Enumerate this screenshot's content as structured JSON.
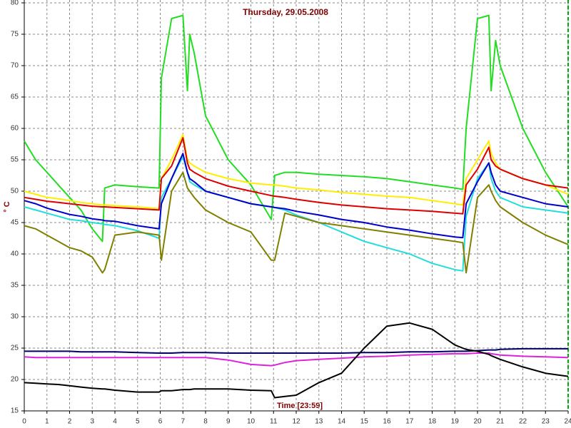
{
  "chart_data": {
    "type": "line",
    "title": "Thursday, 29.05.2008",
    "y_label": "° C",
    "x_label": "Time [23:59]",
    "xlim": [
      0,
      24
    ],
    "ylim": [
      15,
      80
    ],
    "xticks": [
      0,
      1,
      2,
      3,
      4,
      5,
      6,
      7,
      8,
      9,
      10,
      11,
      12,
      13,
      14,
      15,
      16,
      17,
      18,
      19,
      20,
      21,
      22,
      23,
      24
    ],
    "yticks": [
      15,
      20,
      25,
      30,
      35,
      40,
      45,
      50,
      55,
      60,
      65,
      70,
      75,
      80
    ],
    "grid": true,
    "x": [
      0,
      0.5,
      1,
      1.5,
      2,
      2.5,
      3,
      3.45,
      3.55,
      4,
      5,
      5.95,
      6.05,
      6.5,
      7,
      7.2,
      7.3,
      7.5,
      8,
      9,
      10,
      10.9,
      11.05,
      11.5,
      12,
      13,
      14,
      15,
      16,
      17,
      18,
      19,
      19.35,
      19.5,
      20,
      20.5,
      20.6,
      20.8,
      21,
      22,
      23,
      24
    ],
    "series": [
      {
        "color": "#22dd22",
        "values": [
          58,
          55,
          53,
          51,
          49,
          47,
          44,
          42,
          50.5,
          51,
          50.7,
          50.5,
          68,
          77.5,
          78,
          66,
          75,
          72,
          62,
          55,
          51,
          45.5,
          52.5,
          53,
          53,
          52.7,
          52.5,
          52.3,
          52,
          51.5,
          51,
          50.5,
          50.3,
          60,
          77.5,
          78,
          66,
          74,
          70,
          60,
          53,
          47.5
        ]
      },
      {
        "color": "#ffee00",
        "values": [
          50,
          49.5,
          49,
          48.8,
          48.5,
          48.2,
          48,
          47.8,
          47.8,
          47.7,
          47.5,
          47.2,
          52,
          55,
          59,
          55,
          54.5,
          54,
          53,
          52,
          51.3,
          51,
          51,
          50.8,
          50.5,
          50.2,
          49.8,
          49.5,
          49.2,
          49,
          48.5,
          48,
          47.8,
          52,
          55,
          58,
          56,
          54.5,
          53.5,
          52,
          51,
          49.5
        ]
      },
      {
        "color": "#dd0000",
        "values": [
          49,
          48.7,
          48.4,
          48.2,
          48,
          47.8,
          47.6,
          47.5,
          47.5,
          47.4,
          47.2,
          47,
          52,
          54,
          58.5,
          54.5,
          53.5,
          53,
          52,
          50.8,
          50,
          49.3,
          49.2,
          49,
          48.7,
          48.2,
          47.8,
          47.5,
          47.2,
          47,
          46.8,
          46.5,
          46.4,
          51,
          53.5,
          57,
          55,
          54,
          53.5,
          52,
          51,
          50.5
        ]
      },
      {
        "color": "#22dddd",
        "values": [
          47.5,
          47,
          46.5,
          46,
          45.5,
          45.3,
          45,
          44.8,
          44.7,
          44.5,
          43.7,
          42.5,
          49,
          52,
          55.5,
          53,
          51.5,
          51,
          50,
          49,
          48,
          47.5,
          47.4,
          47,
          46.2,
          45,
          43.5,
          42,
          41,
          40,
          38.5,
          37.5,
          37.3,
          46,
          52,
          54.5,
          52,
          50,
          49,
          47.5,
          47,
          46.5
        ]
      },
      {
        "color": "#0000cc",
        "values": [
          48.5,
          48,
          47.3,
          46.8,
          46.3,
          46,
          45.6,
          45.4,
          45.3,
          45.2,
          44.5,
          44,
          48,
          52,
          56,
          53,
          52,
          51.5,
          50,
          49,
          48,
          47.5,
          47.4,
          47.2,
          46.8,
          46.2,
          45.5,
          45,
          44.3,
          43.8,
          43.2,
          42.7,
          42.6,
          48,
          51.5,
          54.5,
          53,
          51,
          50,
          49,
          48,
          47.5
        ]
      },
      {
        "color": "#808000",
        "values": [
          44.5,
          44,
          43,
          42,
          41,
          40.5,
          39.5,
          37,
          37.5,
          43,
          43.5,
          43,
          39,
          50,
          53,
          50.5,
          50,
          49,
          47,
          45,
          43.5,
          39,
          39,
          46.5,
          46,
          45,
          44.5,
          44,
          43.5,
          43,
          42.5,
          42,
          41.8,
          37,
          49,
          51,
          50,
          48.5,
          47.5,
          45,
          43,
          41.5
        ]
      },
      {
        "color": "#000066",
        "values": [
          24.5,
          24.5,
          24.5,
          24.5,
          24.5,
          24.4,
          24.4,
          24.4,
          24.4,
          24.4,
          24.3,
          24.2,
          24.2,
          24.2,
          24.3,
          24.3,
          24.3,
          24.3,
          24.3,
          24.2,
          24.2,
          24.2,
          24.2,
          24.2,
          24.2,
          24.2,
          24.2,
          24.3,
          24.3,
          24.4,
          24.4,
          24.5,
          24.5,
          24.5,
          24.6,
          24.7,
          24.7,
          24.7,
          24.8,
          24.9,
          24.9,
          24.9
        ]
      },
      {
        "color": "#dd22dd",
        "values": [
          23.6,
          23.5,
          23.5,
          23.5,
          23.5,
          23.5,
          23.5,
          23.5,
          23.5,
          23.5,
          23.5,
          23.5,
          23.5,
          23.5,
          23.5,
          23.5,
          23.5,
          23.5,
          23.5,
          23.1,
          22.4,
          22.2,
          22.3,
          22.7,
          23,
          23.2,
          23.4,
          23.6,
          23.7,
          23.9,
          24,
          24.1,
          24.1,
          24.1,
          24.2,
          24.2,
          24.1,
          24,
          23.9,
          23.7,
          23.6,
          23.5
        ]
      },
      {
        "color": "#000000",
        "values": [
          19.5,
          19.4,
          19.3,
          19.2,
          19,
          18.8,
          18.6,
          18.5,
          18.5,
          18.3,
          18,
          18,
          18.2,
          18.2,
          18.4,
          18.4,
          18.4,
          18.5,
          18.5,
          18.5,
          18.3,
          18.2,
          17.1,
          17.3,
          17.5,
          19.5,
          21,
          25,
          28.5,
          29,
          28,
          25.5,
          25,
          24.8,
          24.5,
          24,
          23.8,
          23.5,
          23.2,
          22,
          21,
          20.5
        ]
      }
    ]
  }
}
